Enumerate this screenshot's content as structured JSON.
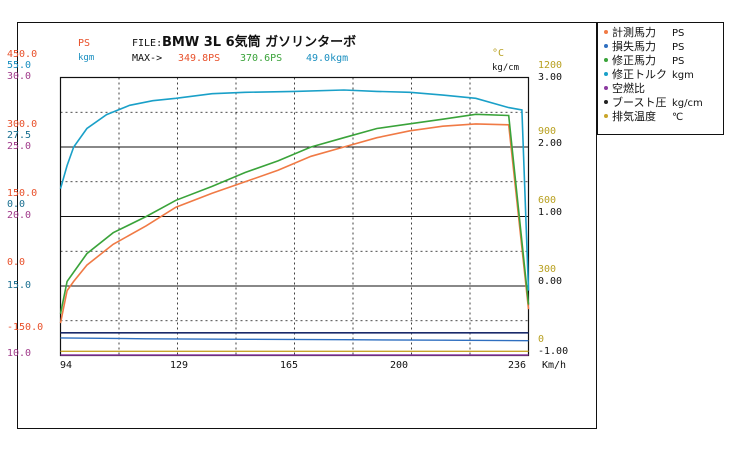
{
  "header": {
    "file_label": "FILE:",
    "file_name": "BMW 3L 6気筒 ガソリンターボ",
    "max_label": "MAX->",
    "max_values": [
      "349.8PS",
      "370.6PS",
      "49.0kgm"
    ]
  },
  "axes": {
    "left_units": [
      "PS",
      "kgm"
    ],
    "right_units": [
      "°C",
      "kg/cm"
    ],
    "x_unit": "Km/h",
    "left_ticks": [
      {
        "values": [
          "450.0",
          "55.0",
          "30.0"
        ]
      },
      {
        "values": [
          "300.0",
          "27.5",
          "25.0"
        ]
      },
      {
        "values": [
          "150.0",
          "0.0",
          "20.0"
        ]
      },
      {
        "values": [
          "0.0"
        ]
      },
      {
        "values": [
          "15.0"
        ]
      },
      {
        "values": [
          "-150.0"
        ]
      },
      {
        "values": [
          "10.0"
        ]
      }
    ],
    "right_temp_ticks": [
      "1200",
      "900",
      "600",
      "300",
      "0"
    ],
    "right_boost_ticks": [
      "3.00",
      "2.00",
      "1.00",
      "0.00",
      "-1.00"
    ],
    "x_ticks": [
      "94",
      "129",
      "165",
      "200",
      "236"
    ]
  },
  "legend": [
    {
      "label": "計測馬力",
      "unit": "PS",
      "color": "#f07a45"
    },
    {
      "label": "損失馬力",
      "unit": "PS",
      "color": "#2f6fc0"
    },
    {
      "label": "修正馬力",
      "unit": "PS",
      "color": "#3aa33a"
    },
    {
      "label": "修正トルク",
      "unit": "kgm",
      "color": "#1aa0c8"
    },
    {
      "label": "空燃比",
      "unit": "",
      "color": "#8b3aa0"
    },
    {
      "label": "ブースト圧",
      "unit": "kg/cm",
      "color": "#222222"
    },
    {
      "label": "排気温度",
      "unit": "℃",
      "color": "#c9a52a"
    }
  ],
  "colors": {
    "ps_axis": "#e8502a",
    "kgm_axis": "#1a8fc0",
    "afr_axis": "#a03a8a",
    "temp_axis": "#b8a020",
    "measured": "#f07a45",
    "loss": "#2f6fc0",
    "corrected": "#3aa33a",
    "torque": "#1aa0c8",
    "afr": "#8b3aa0",
    "boost": "#1a2a6a",
    "exhaust": "#c9a52a"
  },
  "chart_data": {
    "type": "line",
    "xlim": [
      94,
      236
    ],
    "ps_ylim": [
      -150,
      450
    ],
    "series": [
      {
        "name": "計測馬力",
        "axis": "ps",
        "x": [
          94,
          96,
          98,
          102,
          110,
          120,
          129,
          140,
          150,
          160,
          170,
          180,
          190,
          200,
          210,
          220,
          230,
          236
        ],
        "y": [
          -80,
          -10,
          10,
          45,
          90,
          130,
          170,
          200,
          225,
          250,
          280,
          300,
          320,
          335,
          345,
          349.8,
          348,
          -50
        ]
      },
      {
        "name": "損失馬力",
        "axis": "ps",
        "x": [
          94,
          120,
          150,
          180,
          210,
          236
        ],
        "y": [
          -112,
          -114,
          -115,
          -116,
          -117,
          -118
        ]
      },
      {
        "name": "修正馬力",
        "axis": "ps",
        "x": [
          94,
          96,
          98,
          102,
          110,
          120,
          129,
          140,
          150,
          160,
          170,
          180,
          190,
          200,
          210,
          220,
          230,
          236
        ],
        "y": [
          -60,
          10,
          30,
          70,
          115,
          150,
          185,
          215,
          245,
          270,
          300,
          320,
          340,
          350,
          360,
          370.6,
          368,
          -40
        ]
      },
      {
        "name": "修正トルク",
        "axis": "ps",
        "x": [
          94,
          96,
          98,
          102,
          108,
          115,
          122,
          129,
          140,
          150,
          165,
          180,
          190,
          200,
          210,
          220,
          230,
          234,
          236
        ],
        "y": [
          210,
          260,
          300,
          340,
          370,
          390,
          400,
          405,
          415,
          418,
          420,
          423,
          420,
          418,
          412,
          405,
          385,
          380,
          -10
        ]
      },
      {
        "name": "空燃比",
        "axis": "ps",
        "x": [
          94,
          236
        ],
        "y": [
          -149,
          -149
        ]
      },
      {
        "name": "ブースト圧",
        "axis": "ps",
        "x": [
          94,
          236
        ],
        "y": [
          -101,
          -101
        ]
      },
      {
        "name": "排気温度",
        "axis": "ps",
        "x": [
          94,
          236
        ],
        "y": [
          -141,
          -141
        ]
      }
    ]
  }
}
